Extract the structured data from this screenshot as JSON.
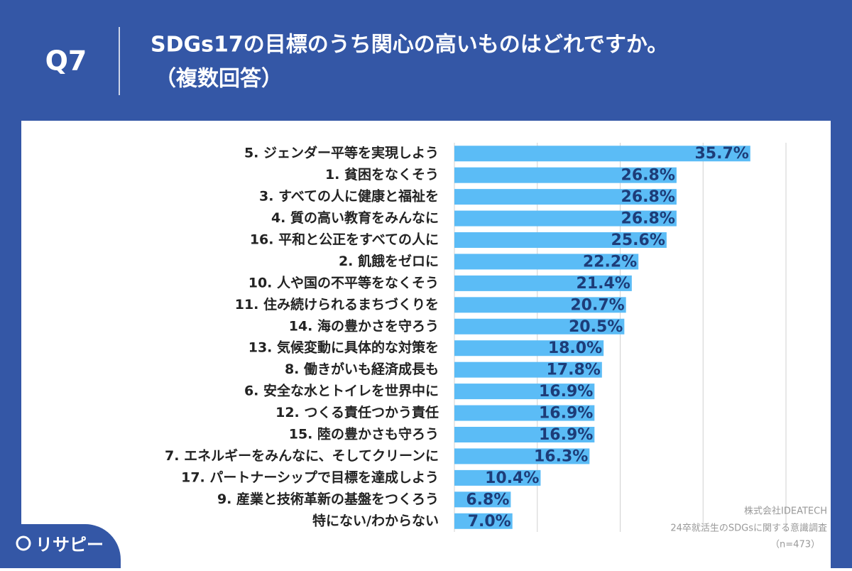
{
  "header": {
    "question": "Q7",
    "title": "SDGs17の目標のうち関心の高いものはどれですか。",
    "subtitle": "（複数回答）"
  },
  "chart_data": {
    "type": "bar",
    "orientation": "horizontal",
    "categories": [
      "5. ジェンダー平等を実現しよう",
      "1. 貧困をなくそう",
      "3. すべての人に健康と福祉を",
      "4. 質の高い教育をみんなに",
      "16. 平和と公正をすべての人に",
      "2. 飢餓をゼロに",
      "10. 人や国の不平等をなくそう",
      "11. 住み続けられるまちづくりを",
      "14. 海の豊かさを守ろう",
      "13. 気候変動に具体的な対策を",
      "8. 働きがいも経済成長も",
      "6. 安全な水とトイレを世界中に",
      "12. つくる責任つかう責任",
      "15. 陸の豊かさも守ろう",
      "7. エネルギーをみんなに、そしてクリーンに",
      "17. パートナーシップで目標を達成しよう",
      "9. 産業と技術革新の基盤をつくろう",
      "特にない/わからない"
    ],
    "values": [
      35.7,
      26.8,
      26.8,
      26.8,
      25.6,
      22.2,
      21.4,
      20.7,
      20.5,
      18.0,
      17.8,
      16.9,
      16.9,
      16.9,
      16.3,
      10.4,
      6.8,
      7.0
    ],
    "value_labels": [
      "35.7%",
      "26.8%",
      "26.8%",
      "26.8%",
      "25.6%",
      "22.2%",
      "21.4%",
      "20.7%",
      "20.5%",
      "18.0%",
      "17.8%",
      "16.9%",
      "16.9%",
      "16.9%",
      "16.3%",
      "10.4%",
      "6.8%",
      "7.0%"
    ],
    "color": "#5bbcf6",
    "xlim": [
      0,
      40
    ],
    "xticks": [
      0,
      10,
      20,
      30,
      40
    ],
    "grid": true
  },
  "footer": {
    "company": "株式会社IDEATECH",
    "survey": "24卒就活生のSDGsに関する意識調査",
    "sample": "（n=473）"
  },
  "logo": "リサピー"
}
